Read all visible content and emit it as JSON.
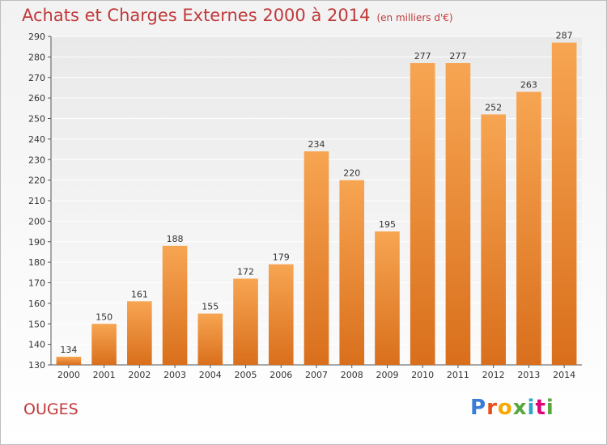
{
  "title": "Achats et Charges Externes 2000 à 2014",
  "subtitle": "(en milliers d'€)",
  "place": "OUGES",
  "logo": {
    "text": "Proxiti",
    "colors": [
      "#3a7bd5",
      "#e94e1b",
      "#f6a800",
      "#56a83c",
      "#2aa7c9",
      "#e2007a",
      "#56a83c"
    ]
  },
  "chart_data": {
    "type": "bar",
    "title": "Achats et Charges Externes 2000 à 2014",
    "subtitle": "(en milliers d'€)",
    "categories": [
      "2000",
      "2001",
      "2002",
      "2003",
      "2004",
      "2005",
      "2006",
      "2007",
      "2008",
      "2009",
      "2010",
      "2011",
      "2012",
      "2013",
      "2014"
    ],
    "values": [
      134,
      150,
      161,
      188,
      155,
      172,
      179,
      234,
      220,
      195,
      277,
      277,
      252,
      263,
      287
    ],
    "ylim": [
      130,
      290
    ],
    "yticks": [
      130,
      140,
      150,
      160,
      170,
      180,
      190,
      200,
      210,
      220,
      230,
      240,
      250,
      260,
      270,
      280,
      290
    ],
    "grid": true,
    "bar_color": "#f0913a"
  }
}
